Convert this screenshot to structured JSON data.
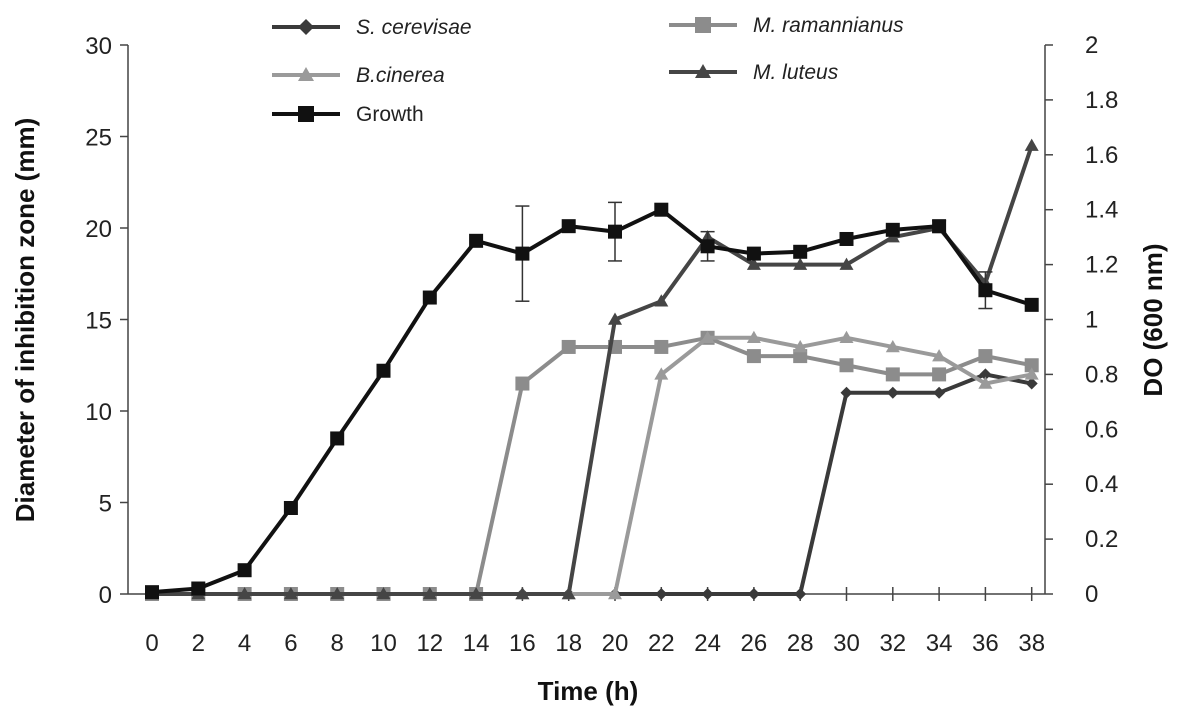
{
  "chart_data": {
    "type": "line",
    "xlabel": "Time (h)",
    "ylabel_left": "Diameter of inhibition zone (mm)",
    "ylabel_right": "DO (600 nm)",
    "x": [
      0,
      2,
      4,
      6,
      8,
      10,
      12,
      14,
      16,
      18,
      20,
      22,
      24,
      26,
      28,
      30,
      32,
      34,
      36,
      38
    ],
    "xticks": [
      "0",
      "2",
      "4",
      "6",
      "8",
      "10",
      "12",
      "14",
      "16",
      "18",
      "20",
      "22",
      "24",
      "26",
      "28",
      "30",
      "32",
      "34",
      "36",
      "38"
    ],
    "ylim_left": [
      0,
      30
    ],
    "yticks_left": [
      "0",
      "5",
      "10",
      "15",
      "20",
      "25",
      "30"
    ],
    "ylim_right": [
      0,
      2
    ],
    "yticks_right": [
      "0",
      "0.2",
      "0.4",
      "0.6",
      "0.8",
      "1",
      "1.2",
      "1.4",
      "1.6",
      "1.8",
      "2"
    ],
    "grid": false,
    "legend_position": "top",
    "series": [
      {
        "name": "S. cerevisae",
        "italic": true,
        "axis": "left",
        "marker": "diamond",
        "color": "#3a3a3a",
        "values": [
          0,
          0,
          0,
          0,
          0,
          0,
          0,
          0,
          0,
          0,
          0,
          0,
          0,
          0,
          0,
          11,
          11,
          11,
          12,
          11.5
        ]
      },
      {
        "name": "M. ramannianus",
        "italic": true,
        "axis": "left",
        "marker": "square",
        "color": "#8c8c8c",
        "values": [
          0,
          0,
          0,
          0,
          0,
          0,
          0,
          0,
          11.5,
          13.5,
          13.5,
          13.5,
          14,
          13,
          13,
          12.5,
          12,
          12,
          13,
          12.5
        ]
      },
      {
        "name": "B.cinerea",
        "italic": true,
        "axis": "left",
        "marker": "triangle",
        "color": "#9a9a9a",
        "values": [
          0,
          0,
          0,
          0,
          0,
          0,
          0,
          0,
          0,
          0,
          0,
          12,
          14,
          14,
          13.5,
          14,
          13.5,
          13,
          11.5,
          12
        ]
      },
      {
        "name": "M. luteus",
        "italic": true,
        "axis": "left",
        "marker": "triangle",
        "color": "#454545",
        "values": [
          0,
          0,
          0,
          0,
          0,
          0,
          0,
          0,
          0,
          0,
          15,
          16,
          19.5,
          18,
          18,
          18,
          19.5,
          20,
          17,
          24.5
        ]
      },
      {
        "name": "Growth",
        "italic": false,
        "axis": "left",
        "marker": "square",
        "color": "#111111",
        "values": [
          0.1,
          0.3,
          1.3,
          4.7,
          8.5,
          12.2,
          16.2,
          19.3,
          18.6,
          20.1,
          19.8,
          21,
          19,
          18.6,
          18.7,
          19.4,
          19.9,
          20.1,
          16.6,
          15.8
        ],
        "error": [
          0,
          0,
          0,
          0,
          0,
          0,
          0,
          0,
          2.6,
          0,
          1.6,
          0,
          0.8,
          0,
          0,
          0,
          0,
          0.3,
          1.0,
          0
        ]
      }
    ]
  }
}
